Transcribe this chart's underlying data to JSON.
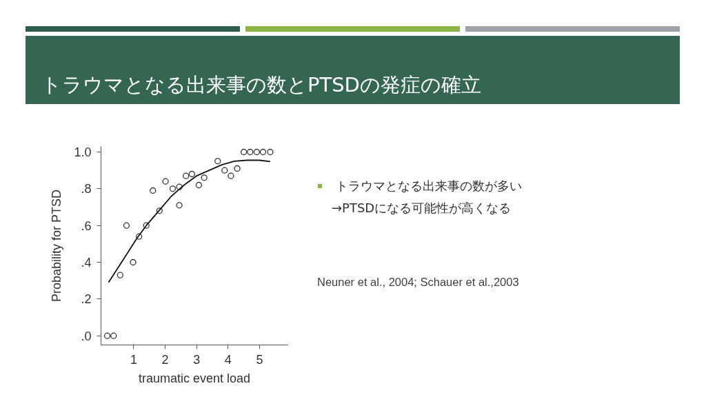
{
  "chart_data": {
    "type": "scatter",
    "title": "トラウマとなる出来事の数とPTSDの発症の確立",
    "xlabel": "traumatic event load",
    "ylabel": "Probability for PTSD",
    "xlim": [
      -0.04,
      5.9
    ],
    "ylim": [
      -0.05,
      1.03
    ],
    "xticks": [
      1,
      2,
      3,
      4,
      5
    ],
    "yticks": [
      {
        "value": 0,
        "label": ".0"
      },
      {
        "value": 0.2,
        "label": ".2"
      },
      {
        "value": 0.4,
        "label": ".4"
      },
      {
        "value": 0.6,
        "label": ".6"
      },
      {
        "value": 0.8,
        "label": ".8"
      },
      {
        "value": 1,
        "label": "1.0"
      }
    ],
    "grid": false,
    "series": [
      {
        "marker": "circle",
        "color": "#333333",
        "x": [
          0.16,
          0.36,
          0.57,
          0.77,
          0.98,
          1.17,
          1.4,
          1.61,
          1.82,
          2.01,
          2.24,
          2.45,
          2.45,
          2.66,
          2.85,
          3.07,
          3.24,
          3.67,
          3.89,
          4.09,
          4.29,
          4.5,
          4.7,
          4.91,
          5.11,
          5.34
        ],
        "values": [
          0,
          0,
          0.33,
          0.6,
          0.4,
          0.54,
          0.6,
          0.79,
          0.68,
          0.84,
          0.8,
          0.81,
          0.71,
          0.87,
          0.88,
          0.82,
          0.86,
          0.95,
          0.9,
          0.87,
          0.91,
          1,
          1,
          1,
          1,
          1
        ]
      },
      {
        "type": "line",
        "marker": "none",
        "color": "#111111",
        "x": [
          0.2,
          0.5,
          0.8,
          1.1,
          1.4,
          1.8,
          2.2,
          2.6,
          3.0,
          3.4,
          3.8,
          4.2,
          4.6,
          5.0,
          5.34
        ],
        "values": [
          0.29,
          0.37,
          0.45,
          0.53,
          0.6,
          0.68,
          0.76,
          0.82,
          0.87,
          0.9,
          0.93,
          0.95,
          0.955,
          0.955,
          0.948
        ]
      }
    ],
    "annotations": [
      "トラウマとなる出来事の数が多い",
      "→PTSDになる可能性が高くなる",
      "Neuner et al., 2004; Schauer et al.,2003"
    ]
  }
}
